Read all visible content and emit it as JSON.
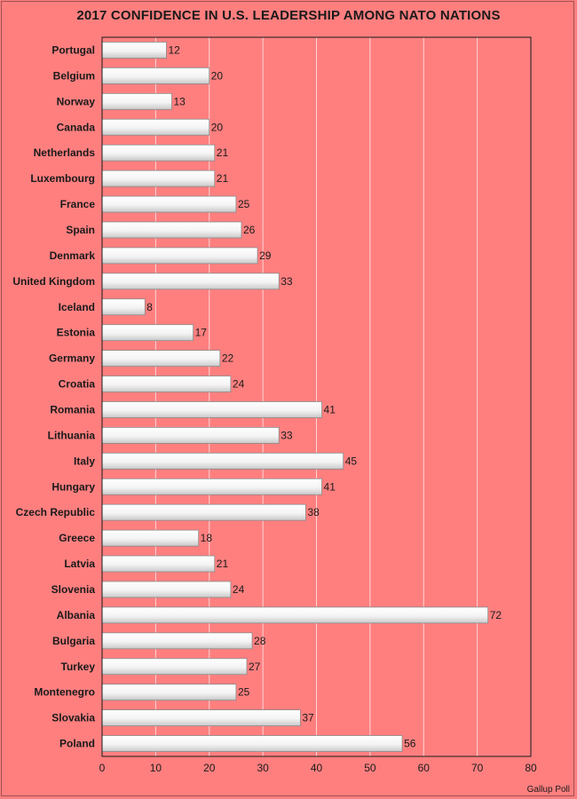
{
  "chart_data": {
    "type": "bar",
    "orientation": "horizontal",
    "title": "2017 CONFIDENCE IN U.S. LEADERSHIP AMONG NATO NATIONS",
    "categories": [
      "Portugal",
      "Belgium",
      "Norway",
      "Canada",
      "Netherlands",
      "Luxembourg",
      "France",
      "Spain",
      "Denmark",
      "United Kingdom",
      "Iceland",
      "Estonia",
      "Germany",
      "Croatia",
      "Romania",
      "Lithuania",
      "Italy",
      "Hungary",
      "Czech Republic",
      "Greece",
      "Latvia",
      "Slovenia",
      "Albania",
      "Bulgaria",
      "Turkey",
      "Montenegro",
      "Slovakia",
      "Poland"
    ],
    "values": [
      12,
      20,
      13,
      20,
      21,
      21,
      25,
      26,
      29,
      33,
      8,
      17,
      22,
      24,
      41,
      33,
      45,
      41,
      38,
      18,
      21,
      24,
      72,
      28,
      27,
      25,
      37,
      56
    ],
    "xlim": [
      0,
      80
    ],
    "xticks": [
      0,
      10,
      20,
      30,
      40,
      50,
      60,
      70,
      80
    ],
    "xlabel": "",
    "ylabel": "",
    "grid": true,
    "source": "Gallup Poll",
    "colors": {
      "background": "#ff7f7f",
      "bar": "#ffffff",
      "bar_shade": "#d8d8d8",
      "grid": "#ffd5d5"
    }
  }
}
